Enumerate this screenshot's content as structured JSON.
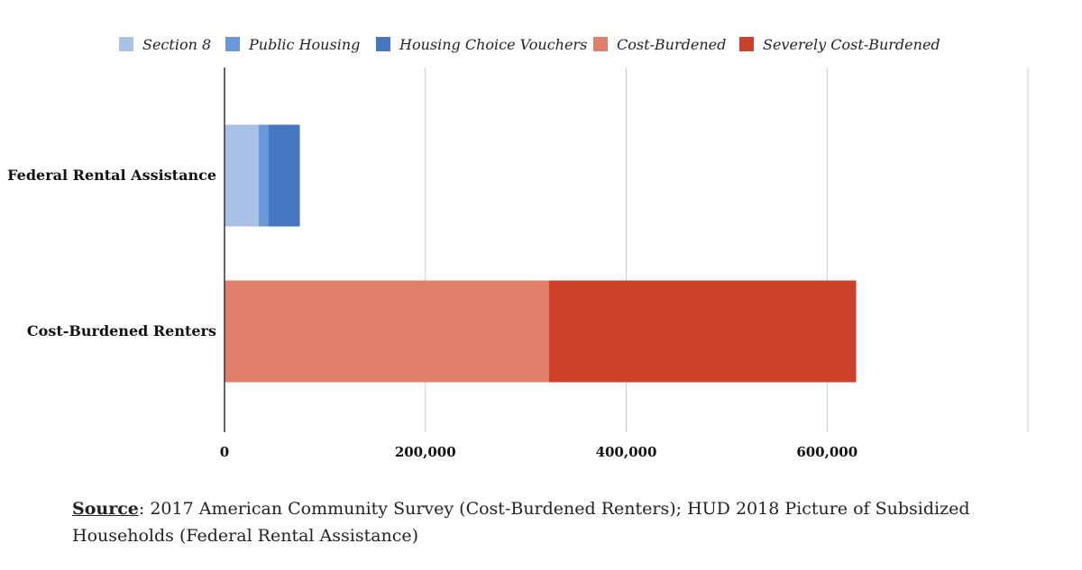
{
  "colors": {
    "section_8": "#a8c1e4",
    "public_housing": "#6a98d8",
    "housing_choice_vouchers": "#4677c2",
    "cost_burdened": "#e07f6a",
    "severely_cost_burdened": "#cc4129",
    "grid": "#cccccc",
    "axis": "#333333"
  },
  "chart_data": {
    "type": "bar",
    "orientation": "horizontal",
    "stacked": true,
    "categories": [
      "Federal Rental Assistance",
      "Cost-Burdened Renters"
    ],
    "series": [
      {
        "name": "Section 8",
        "color_key": "section_8",
        "values": [
          34000,
          0
        ]
      },
      {
        "name": "Public Housing",
        "color_key": "public_housing",
        "values": [
          10000,
          0
        ]
      },
      {
        "name": "Housing Choice Vouchers",
        "color_key": "housing_choice_vouchers",
        "values": [
          31000,
          0
        ]
      },
      {
        "name": "Cost-Burdened",
        "color_key": "cost_burdened",
        "values": [
          0,
          323000
        ]
      },
      {
        "name": "Severely Cost-Burdened",
        "color_key": "severely_cost_burdened",
        "values": [
          0,
          306000
        ]
      }
    ],
    "xlim": [
      0,
      800000
    ],
    "xticks": [
      0,
      200000,
      400000,
      600000,
      800000
    ],
    "xtick_labels": [
      "0",
      "200,000",
      "400,000",
      "600,000",
      ""
    ],
    "grid": true,
    "legend_position": "top"
  },
  "source": {
    "label": "Source",
    "text": ": 2017 American Community Survey (Cost-Burdened Renters); HUD 2018 Picture of Subsidized Households (Federal Rental Assistance)"
  }
}
